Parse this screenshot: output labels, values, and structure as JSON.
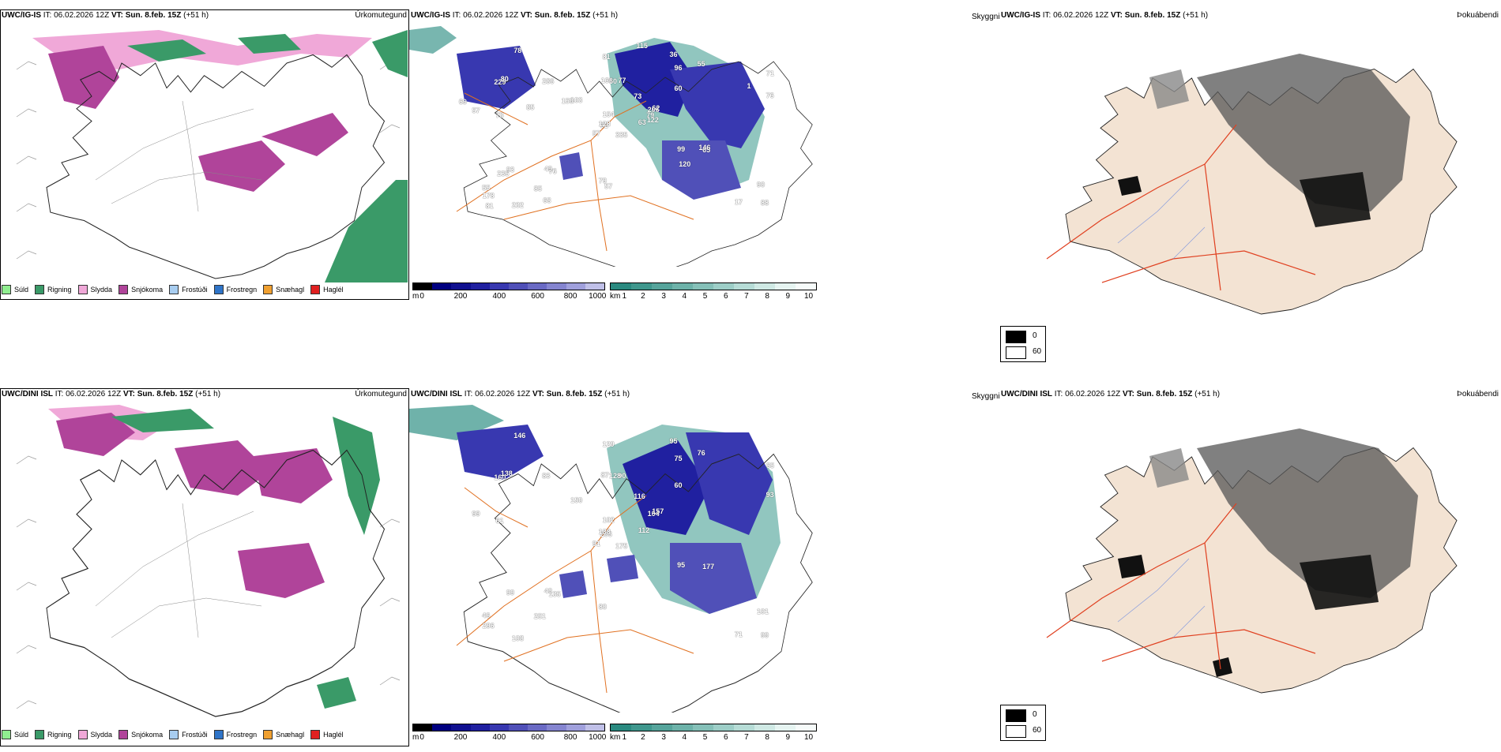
{
  "rows": [
    {
      "id": "top",
      "model": "UWC/IG-IS",
      "run_label": "IT: 06.02.2026 12Z",
      "valid_label": "VT: Sun. 8.feb. 15Z",
      "lead": "(+51 h)",
      "precip_title": "Úrkomutegund",
      "fog_title": "Þokuábendi",
      "cloud_labels": [
        "335",
        "229",
        "62",
        "55",
        "206",
        "76",
        "36",
        "77",
        "96",
        "63",
        "78",
        "88",
        "73",
        "71",
        "57",
        "60",
        "232",
        "166",
        "73",
        "93",
        "103",
        "178",
        "85",
        "60",
        "62",
        "65",
        "80",
        "81",
        "57",
        "99",
        "76",
        "128",
        "79",
        "154",
        "286",
        "55",
        "49",
        "17",
        "90",
        "146",
        "115",
        "150",
        "85",
        "120",
        "68",
        "69",
        "79",
        "81",
        "57",
        "122",
        "235",
        "1"
      ]
    },
    {
      "id": "bottom",
      "model": "UWC/DINI ISL",
      "run_label": "IT: 06.02.2026 12Z",
      "valid_label": "VT: Sun. 8.feb. 15Z",
      "lead": "(+51 h)",
      "precip_title": "Úrkomutegund",
      "fog_title": "Þokuábendi",
      "cloud_labels": [
        "175",
        "160",
        "206",
        "46",
        "104",
        "135",
        "95",
        "90",
        "75",
        "112",
        "146",
        "99",
        "61",
        "65",
        "91",
        "60",
        "108",
        "87",
        "116",
        "99",
        "150",
        "296",
        "251",
        "128",
        "157",
        "177",
        "138",
        "129",
        "99",
        "95",
        "93",
        "138",
        "80",
        "102",
        "83",
        "76",
        "40",
        "71",
        "101"
      ]
    }
  ],
  "precip_legend": [
    {
      "label": "Súld",
      "color": "#90ee90"
    },
    {
      "label": "Rigning",
      "color": "#3a9a68"
    },
    {
      "label": "Slydda",
      "color": "#f0a8d8"
    },
    {
      "label": "Snjókoma",
      "color": "#b0449a"
    },
    {
      "label": "Frostúði",
      "color": "#a8cdf0"
    },
    {
      "label": "Frostregn",
      "color": "#2f74c8"
    },
    {
      "label": "Snæhagl",
      "color": "#f0a030"
    },
    {
      "label": "Haglél",
      "color": "#e02020"
    }
  ],
  "visibility_title": "Skyggni",
  "height_scale": {
    "unit": "m",
    "ticks": [
      "0",
      "200",
      "400",
      "600",
      "800",
      "1000"
    ]
  },
  "vis_scale": {
    "unit": "km",
    "ticks": [
      "1",
      "2",
      "3",
      "4",
      "5",
      "6",
      "7",
      "8",
      "9",
      "10"
    ]
  },
  "fog_legend": [
    {
      "label": "0",
      "color": "#000000"
    },
    {
      "label": "60",
      "color": "#ffffff"
    }
  ],
  "colors": {
    "height_ramp": [
      "#000000",
      "#000080",
      "#101090",
      "#2020a0",
      "#3838b0",
      "#5050b8",
      "#6a6ac4",
      "#8585d0",
      "#a0a0dc",
      "#c0c0e8"
    ],
    "vis_ramp": [
      "#2a8a80",
      "#3f978d",
      "#56a49b",
      "#6db2a9",
      "#85c0b8",
      "#9dcec7",
      "#b6dcd6",
      "#cfe9e4",
      "#e6f4f1",
      "#f6fbfa"
    ]
  }
}
